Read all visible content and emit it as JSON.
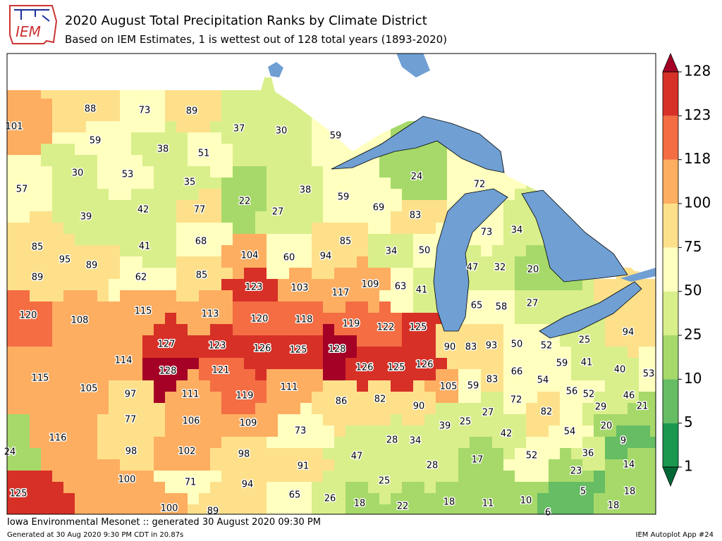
{
  "header": {
    "logo": "IEM",
    "title": "2020 August Total Precipitation Ranks by Climate District",
    "subtitle": "Based on IEM Estimates, 1 is wettest out of 128 total years (1893-2020)"
  },
  "map": {
    "ranks": [
      88,
      73,
      89,
      101,
      37,
      30,
      59,
      59,
      38,
      51,
      24,
      30,
      53,
      35,
      72,
      57,
      22,
      27,
      38,
      59,
      69,
      83,
      77,
      39,
      42,
      73,
      34,
      85,
      41,
      68,
      85,
      34,
      50,
      104,
      60,
      94,
      95,
      89,
      47,
      32,
      20,
      89,
      62,
      85,
      123,
      103,
      117,
      109,
      63,
      41,
      65,
      58,
      27,
      120,
      108,
      115,
      113,
      120,
      118,
      119,
      122,
      125,
      94,
      127,
      123,
      126,
      125,
      128,
      90,
      83,
      93,
      50,
      52,
      25,
      114,
      126,
      125,
      126,
      59,
      41,
      40,
      115,
      128,
      121,
      66,
      54,
      53,
      105,
      111,
      105,
      59,
      83,
      56,
      52,
      46,
      97,
      111,
      119,
      72,
      29,
      21,
      82,
      90,
      86,
      77,
      106,
      109,
      82,
      27,
      39,
      25,
      54,
      20,
      116,
      73,
      28,
      34,
      42,
      9,
      98,
      102,
      98,
      36,
      47,
      17,
      52,
      14,
      28,
      23,
      91,
      25,
      100,
      71,
      94,
      5,
      18,
      65,
      26,
      18,
      22,
      18,
      11,
      10,
      18,
      6,
      125,
      100,
      89,
      24
    ]
  },
  "colorbar": {
    "ticks": [
      1,
      5,
      10,
      25,
      50,
      75,
      100,
      118,
      123,
      128
    ],
    "colors": [
      "#1a9850",
      "#66bd63",
      "#a6d96a",
      "#d9ef8b",
      "#ffffbf",
      "#fee08b",
      "#fdae61",
      "#f46d43",
      "#d73027"
    ],
    "under_color": "#006837",
    "over_color": "#a50026"
  },
  "footer": {
    "left": "Iowa Environmental Mesonet :: generated 30 August 2020 09:30 PM",
    "small": "Generated at 30 Aug 2020 9:30 PM CDT in 20.87s",
    "right": "IEM Autoplot App #24"
  }
}
